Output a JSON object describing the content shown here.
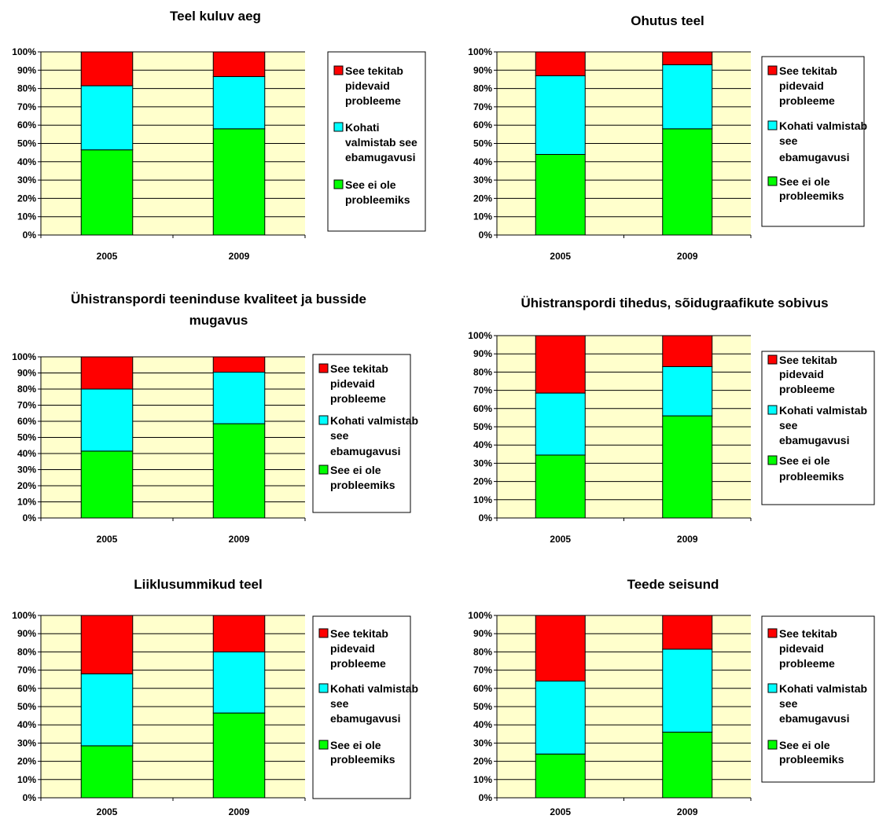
{
  "colors": {
    "plot_background": "#ffffcc",
    "pidevaid": "#ff0000",
    "kohati": "#00ffff",
    "ei_ole": "#00ff00"
  },
  "chart_data": [
    {
      "type": "bar",
      "stacked": true,
      "percent_stacked": true,
      "title": "Teel kuluv aeg",
      "categories": [
        "2005",
        "2009"
      ],
      "y_ticks": [
        "0%",
        "10%",
        "20%",
        "30%",
        "40%",
        "50%",
        "60%",
        "70%",
        "80%",
        "90%",
        "100%"
      ],
      "ylim": [
        0,
        100
      ],
      "grid": true,
      "legend_position": "right",
      "series": [
        {
          "name": "See ei ole probleemiks",
          "color": "#00ff00",
          "values": [
            46.5,
            58
          ]
        },
        {
          "name": "Kohati valmistab see ebamugavusi",
          "color": "#00ffff",
          "values": [
            35,
            28.5
          ]
        },
        {
          "name": "See tekitab pidevaid probleeme",
          "color": "#ff0000",
          "values": [
            18.5,
            13.5
          ]
        }
      ],
      "legend": [
        {
          "color": "#ff0000",
          "lines": [
            "See tekitab",
            "pidevaid",
            "probleeme"
          ]
        },
        {
          "color": "#00ffff",
          "lines": [
            "Kohati",
            "valmistab see",
            "ebamugavusi"
          ]
        },
        {
          "color": "#00ff00",
          "lines": [
            "See ei ole",
            "probleemiks"
          ]
        }
      ]
    },
    {
      "type": "bar",
      "stacked": true,
      "percent_stacked": true,
      "title": "Ohutus teel",
      "categories": [
        "2005",
        "2009"
      ],
      "y_ticks": [
        "0%",
        "10%",
        "20%",
        "30%",
        "40%",
        "50%",
        "60%",
        "70%",
        "80%",
        "90%",
        "100%"
      ],
      "ylim": [
        0,
        100
      ],
      "grid": true,
      "legend_position": "right",
      "series": [
        {
          "name": "See ei ole probleemiks",
          "color": "#00ff00",
          "values": [
            44,
            58
          ]
        },
        {
          "name": "Kohati valmistab see ebamugavusi",
          "color": "#00ffff",
          "values": [
            43,
            35
          ]
        },
        {
          "name": "See tekitab pidevaid probleeme",
          "color": "#ff0000",
          "values": [
            13,
            7
          ]
        }
      ],
      "legend": [
        {
          "color": "#ff0000",
          "lines": [
            "See tekitab",
            "pidevaid",
            "probleeme"
          ]
        },
        {
          "color": "#00ffff",
          "lines": [
            "Kohati valmistab",
            "see",
            "ebamugavusi"
          ]
        },
        {
          "color": "#00ff00",
          "lines": [
            "See ei ole",
            "probleemiks"
          ]
        }
      ]
    },
    {
      "type": "bar",
      "stacked": true,
      "percent_stacked": true,
      "title": "Ühistranspordi teeninduse kvaliteet ja busside mugavus",
      "categories": [
        "2005",
        "2009"
      ],
      "y_ticks": [
        "0%",
        "10%",
        "20%",
        "30%",
        "40%",
        "50%",
        "60%",
        "70%",
        "80%",
        "90%",
        "100%"
      ],
      "ylim": [
        0,
        100
      ],
      "grid": true,
      "legend_position": "right",
      "series": [
        {
          "name": "See ei ole probleemiks",
          "color": "#00ff00",
          "values": [
            41.5,
            58.5
          ]
        },
        {
          "name": "Kohati valmistab see ebamugavusi",
          "color": "#00ffff",
          "values": [
            38.5,
            32
          ]
        },
        {
          "name": "See tekitab pidevaid probleeme",
          "color": "#ff0000",
          "values": [
            20,
            9.5
          ]
        }
      ],
      "legend": [
        {
          "color": "#ff0000",
          "lines": [
            "See tekitab",
            "pidevaid",
            "probleeme"
          ]
        },
        {
          "color": "#00ffff",
          "lines": [
            "Kohati valmistab",
            "see",
            "ebamugavusi"
          ]
        },
        {
          "color": "#00ff00",
          "lines": [
            "See ei ole",
            "probleemiks"
          ]
        }
      ]
    },
    {
      "type": "bar",
      "stacked": true,
      "percent_stacked": true,
      "title": "Ühistranspordi tihedus, sõidugraafikute sobivus",
      "categories": [
        "2005",
        "2009"
      ],
      "y_ticks": [
        "0%",
        "10%",
        "20%",
        "30%",
        "40%",
        "50%",
        "60%",
        "70%",
        "80%",
        "90%",
        "100%"
      ],
      "ylim": [
        0,
        100
      ],
      "grid": true,
      "legend_position": "right",
      "series": [
        {
          "name": "See ei ole probleemiks",
          "color": "#00ff00",
          "values": [
            34.5,
            56
          ]
        },
        {
          "name": "Kohati valmistab see ebamugavusi",
          "color": "#00ffff",
          "values": [
            34,
            27
          ]
        },
        {
          "name": "See tekitab pidevaid probleeme",
          "color": "#ff0000",
          "values": [
            31.5,
            17
          ]
        }
      ],
      "legend": [
        {
          "color": "#ff0000",
          "lines": [
            "See tekitab",
            "pidevaid",
            "probleeme"
          ]
        },
        {
          "color": "#00ffff",
          "lines": [
            "Kohati valmistab",
            "see",
            "ebamugavusi"
          ]
        },
        {
          "color": "#00ff00",
          "lines": [
            "See ei ole",
            "probleemiks"
          ]
        }
      ]
    },
    {
      "type": "bar",
      "stacked": true,
      "percent_stacked": true,
      "title": "Liiklusummikud teel",
      "categories": [
        "2005",
        "2009"
      ],
      "y_ticks": [
        "0%",
        "10%",
        "20%",
        "30%",
        "40%",
        "50%",
        "60%",
        "70%",
        "80%",
        "90%",
        "100%"
      ],
      "ylim": [
        0,
        100
      ],
      "grid": true,
      "legend_position": "right",
      "series": [
        {
          "name": "See ei ole probleemiks",
          "color": "#00ff00",
          "values": [
            28.5,
            46.5
          ]
        },
        {
          "name": "Kohati valmistab see ebamugavusi",
          "color": "#00ffff",
          "values": [
            39.5,
            33.5
          ]
        },
        {
          "name": "See tekitab pidevaid probleeme",
          "color": "#ff0000",
          "values": [
            32,
            20
          ]
        }
      ],
      "legend": [
        {
          "color": "#ff0000",
          "lines": [
            "See tekitab",
            "pidevaid",
            "probleeme"
          ]
        },
        {
          "color": "#00ffff",
          "lines": [
            "Kohati valmistab",
            "see",
            "ebamugavusi"
          ]
        },
        {
          "color": "#00ff00",
          "lines": [
            "See ei ole",
            "probleemiks"
          ]
        }
      ]
    },
    {
      "type": "bar",
      "stacked": true,
      "percent_stacked": true,
      "title": "Teede seisund",
      "categories": [
        "2005",
        "2009"
      ],
      "y_ticks": [
        "0%",
        "10%",
        "20%",
        "30%",
        "40%",
        "50%",
        "60%",
        "70%",
        "80%",
        "90%",
        "100%"
      ],
      "ylim": [
        0,
        100
      ],
      "grid": true,
      "legend_position": "right",
      "series": [
        {
          "name": "See ei ole probleemiks",
          "color": "#00ff00",
          "values": [
            24,
            36
          ]
        },
        {
          "name": "Kohati valmistab see ebamugavusi",
          "color": "#00ffff",
          "values": [
            40,
            45.5
          ]
        },
        {
          "name": "See tekitab pidevaid probleeme",
          "color": "#ff0000",
          "values": [
            36,
            18.5
          ]
        }
      ],
      "legend": [
        {
          "color": "#ff0000",
          "lines": [
            "See tekitab",
            "pidevaid",
            "probleeme"
          ]
        },
        {
          "color": "#00ffff",
          "lines": [
            "Kohati valmistab",
            "see",
            "ebamugavusi"
          ]
        },
        {
          "color": "#00ff00",
          "lines": [
            "See ei ole",
            "probleemiks"
          ]
        }
      ]
    }
  ]
}
